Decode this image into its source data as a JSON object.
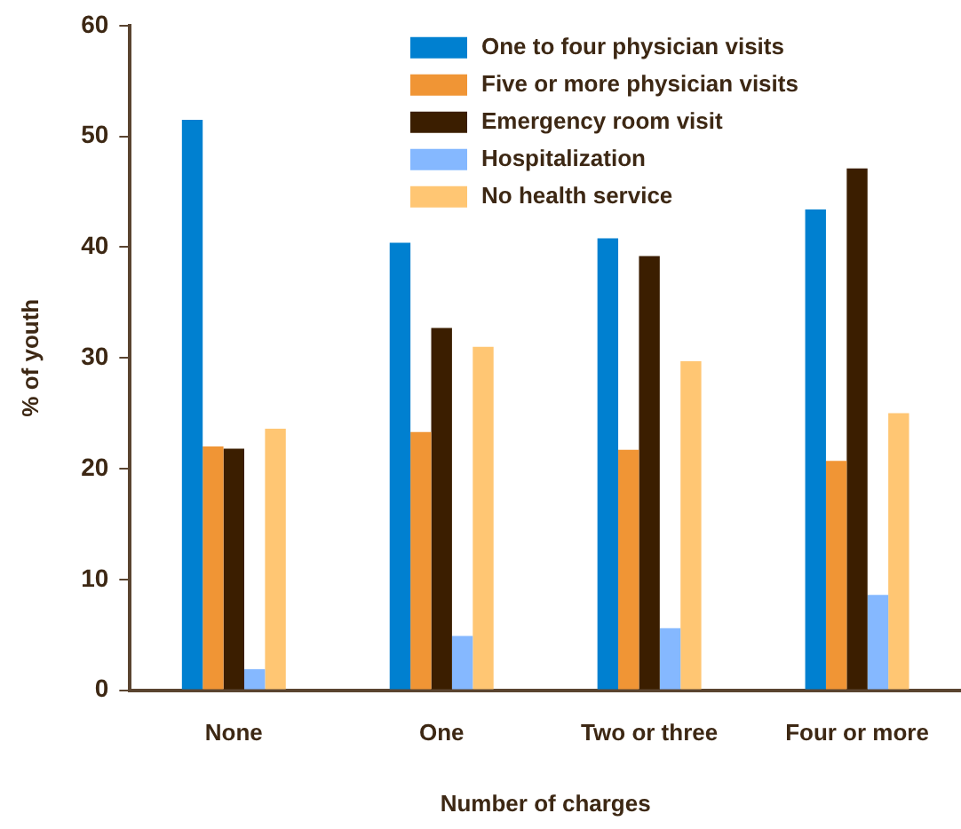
{
  "chart_data": {
    "type": "bar",
    "xlabel": "Number of charges",
    "ylabel": "% of youth",
    "categories": [
      "None",
      "One",
      "Two or three",
      "Four or more"
    ],
    "series": [
      {
        "name": "One to four physician visits",
        "color": "#0080d0",
        "values": [
          51.5,
          40.4,
          40.8,
          43.4
        ]
      },
      {
        "name": "Five or more physician visits",
        "color": "#f09535",
        "values": [
          22.0,
          23.3,
          21.7,
          20.7
        ]
      },
      {
        "name": "Emergency room visit",
        "color": "#3b1e00",
        "values": [
          21.8,
          32.7,
          39.2,
          47.1
        ]
      },
      {
        "name": "Hospitalization",
        "color": "#85b8ff",
        "values": [
          1.9,
          4.9,
          5.6,
          8.6
        ]
      },
      {
        "name": "No health service",
        "color": "#ffc673",
        "values": [
          23.6,
          31.0,
          29.7,
          25.0
        ]
      }
    ],
    "ylim": [
      0,
      60
    ],
    "yticks": [
      0,
      10,
      20,
      30,
      40,
      50,
      60
    ],
    "grid": false,
    "legend": "top right"
  }
}
